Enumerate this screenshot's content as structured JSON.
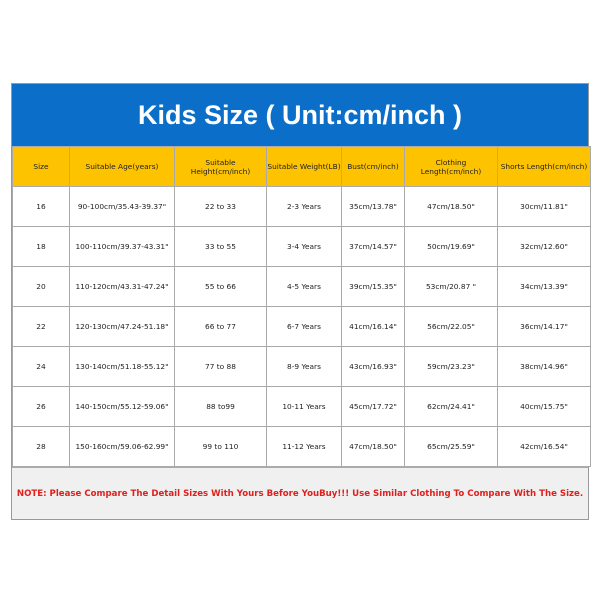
{
  "title": "Kids Size ( Unit:cm/inch )",
  "headers": [
    "Size",
    "Suitable Age(years)",
    "Suitable Height(cm/inch)",
    "Suitable Weight(LB)",
    "Bust(cm/inch)",
    "Clothing Length(cm/inch)",
    "Shorts Length(cm/inch)"
  ],
  "rows": [
    [
      "16",
      "90-100cm/35.43-39.37\"",
      "22 to 33",
      "2-3 Years",
      "35cm/13.78\"",
      "47cm/18.50\"",
      "30cm/11.81\""
    ],
    [
      "18",
      "100-110cm/39.37-43.31\"",
      "33 to 55",
      "3-4 Years",
      "37cm/14.57\"",
      "50cm/19.69\"",
      "32cm/12.60\""
    ],
    [
      "20",
      "110-120cm/43.31-47.24\"",
      "55 to 66",
      "4-5 Years",
      "39cm/15.35\"",
      "53cm/20.87 \"",
      "34cm/13.39\""
    ],
    [
      "22",
      "120-130cm/47.24-51.18\"",
      "66 to 77",
      "6-7 Years",
      "41cm/16.14\"",
      "56cm/22.05\"",
      "36cm/14.17\""
    ],
    [
      "24",
      "130-140cm/51.18-55.12\"",
      "77 to 88",
      "8-9 Years",
      "43cm/16.93\"",
      "59cm/23.23\"",
      "38cm/14.96\""
    ],
    [
      "26",
      "140-150cm/55.12-59.06\"",
      "88 to99",
      "10-11 Years",
      "45cm/17.72\"",
      "62cm/24.41\"",
      "40cm/15.75\""
    ],
    [
      "28",
      "150-160cm/59.06-62.99\"",
      "99 to 110",
      "11-12 Years",
      "47cm/18.50\"",
      "65cm/25.59\"",
      "42cm/16.54\""
    ]
  ],
  "note": "NOTE: Please Compare The Detail Sizes With Yours Before YouBuy!!! Use Similar Clothing To Compare With The Size.",
  "colors": {
    "title_bg": "#0b6fca",
    "header_bg": "#fdc300",
    "note_text": "#e0201c"
  }
}
